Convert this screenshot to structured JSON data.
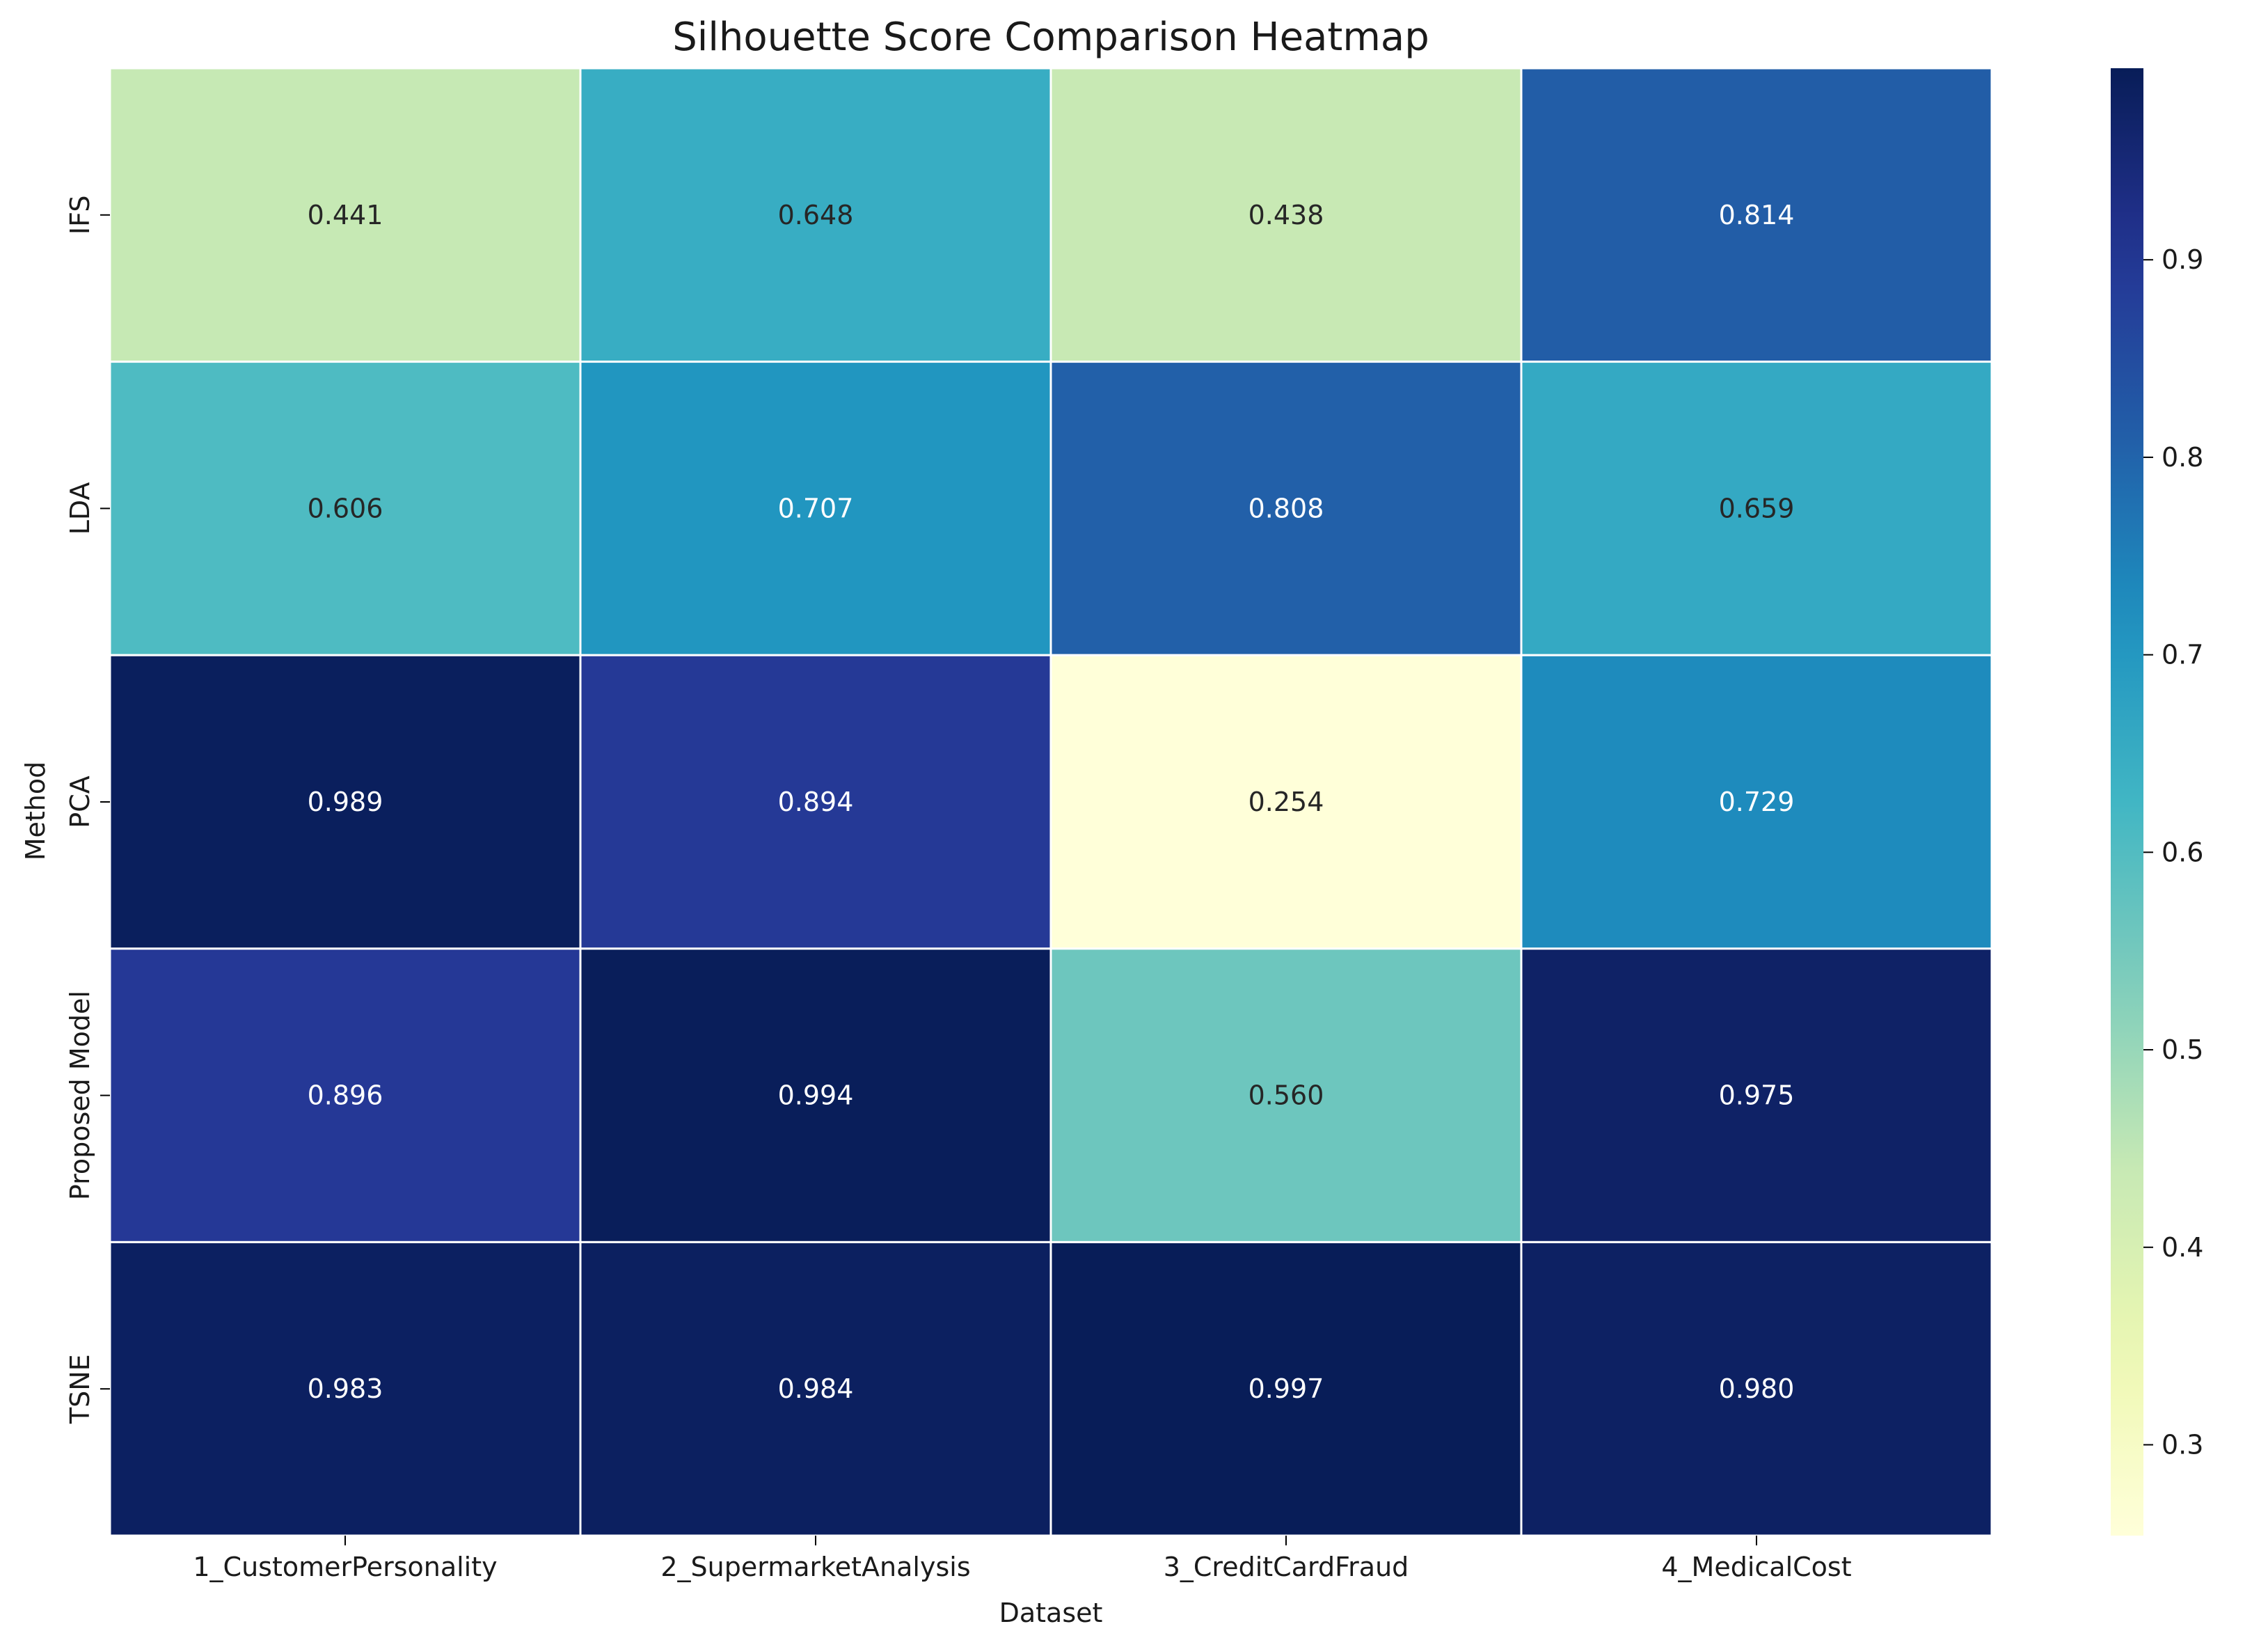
{
  "chart_data": {
    "type": "heatmap",
    "title": "Silhouette Score Comparison Heatmap",
    "xlabel": "Dataset",
    "ylabel": "Method",
    "x_categories": [
      "1_CustomerPersonality",
      "2_SupermarketAnalysis",
      "3_CreditCardFraud",
      "4_MedicalCost"
    ],
    "y_categories": [
      "IFS",
      "LDA",
      "PCA",
      "Proposed Model",
      "TSNE"
    ],
    "values": [
      [
        0.441,
        0.648,
        0.438,
        0.814
      ],
      [
        0.606,
        0.707,
        0.808,
        0.659
      ],
      [
        0.989,
        0.894,
        0.254,
        0.729
      ],
      [
        0.896,
        0.994,
        0.56,
        0.975
      ],
      [
        0.983,
        0.984,
        0.997,
        0.98
      ]
    ],
    "value_format": "0.000",
    "colormap": "YlGnBu",
    "colorbar": {
      "range": [
        0.254,
        0.997
      ],
      "ticks": [
        0.3,
        0.4,
        0.5,
        0.6,
        0.7,
        0.8,
        0.9
      ],
      "tick_labels": [
        "0.3",
        "0.4",
        "0.5",
        "0.6",
        "0.7",
        "0.8",
        "0.9"
      ]
    },
    "grid": true,
    "legend": "colorbar-right"
  }
}
